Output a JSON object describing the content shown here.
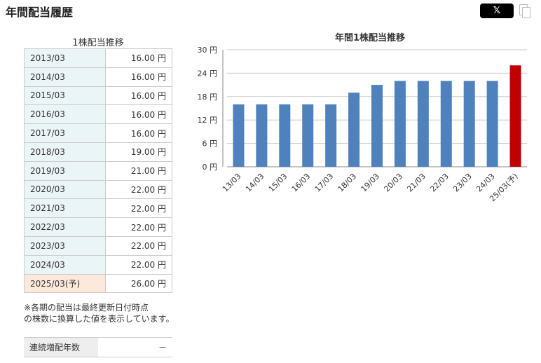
{
  "header": {
    "title": "年間配当履歴",
    "x_button_label": "𝕏"
  },
  "table": {
    "caption": "1株配当推移",
    "rows": [
      {
        "period": "2013/03",
        "dividend": "16.00 円"
      },
      {
        "period": "2014/03",
        "dividend": "16.00 円"
      },
      {
        "period": "2015/03",
        "dividend": "16.00 円"
      },
      {
        "period": "2016/03",
        "dividend": "16.00 円"
      },
      {
        "period": "2017/03",
        "dividend": "16.00 円"
      },
      {
        "period": "2018/03",
        "dividend": "19.00 円"
      },
      {
        "period": "2019/03",
        "dividend": "21.00 円"
      },
      {
        "period": "2020/03",
        "dividend": "22.00 円"
      },
      {
        "period": "2021/03",
        "dividend": "22.00 円"
      },
      {
        "period": "2022/03",
        "dividend": "22.00 円"
      },
      {
        "period": "2023/03",
        "dividend": "22.00 円"
      },
      {
        "period": "2024/03",
        "dividend": "22.00 円"
      },
      {
        "period": "2025/03(予)",
        "dividend": "26.00 円"
      }
    ]
  },
  "note": {
    "line1": "※各期の配当は最終更新日付時点",
    "line2": "の株数に換算した値を表示しています。"
  },
  "streak": {
    "label": "連続増配年数",
    "value": "－"
  },
  "colors": {
    "actual_bar": "#4f81bd",
    "forecast_bar": "#c00000"
  },
  "chart_data": {
    "type": "bar",
    "title": "年間1株配当推移",
    "categories": [
      "13/03",
      "14/03",
      "15/03",
      "16/03",
      "17/03",
      "18/03",
      "19/03",
      "20/03",
      "21/03",
      "22/03",
      "23/03",
      "24/03",
      "25/03(予)"
    ],
    "values": [
      16,
      16,
      16,
      16,
      16,
      19,
      21,
      22,
      22,
      22,
      22,
      22,
      26
    ],
    "forecast_flags": [
      false,
      false,
      false,
      false,
      false,
      false,
      false,
      false,
      false,
      false,
      false,
      false,
      true
    ],
    "ylim": [
      0,
      30
    ],
    "yticks": [
      0,
      6,
      12,
      18,
      24,
      30
    ],
    "ytick_labels": [
      "0 円",
      "6 円",
      "12 円",
      "18 円",
      "24 円",
      "30 円"
    ],
    "grid": true
  }
}
